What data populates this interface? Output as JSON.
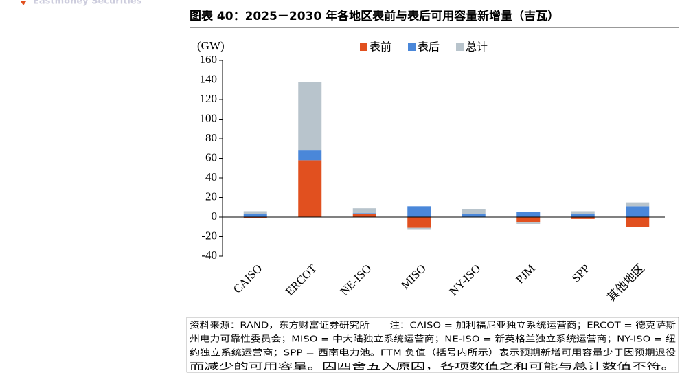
{
  "brand": "Eastmoney Securities",
  "chart_data": {
    "type": "stacked_bar",
    "title": "图表 40：2025－2030 年各地区表前与表后可用容量新增量（吉瓦）",
    "y_label": "(GW)",
    "categories": [
      "CAISO",
      "ERCOT",
      "NE-ISO",
      "MISO",
      "NY-ISO",
      "PJM",
      "SPP",
      "其他地区"
    ],
    "series": [
      {
        "name": "表前",
        "color": "#e1501f",
        "values": [
          -1,
          58,
          3,
          -11,
          0,
          -5,
          -2,
          -10
        ]
      },
      {
        "name": "表后",
        "color": "#4a87d9",
        "values": [
          3,
          10,
          1,
          11,
          3,
          5,
          3,
          11
        ]
      },
      {
        "name": "总计",
        "color": "#b8c4cc",
        "values": [
          3,
          70,
          5,
          -2,
          5,
          -2,
          3,
          4
        ]
      }
    ],
    "ylim": [
      -40,
      160
    ],
    "yticks": [
      -40,
      -20,
      0,
      20,
      40,
      60,
      80,
      100,
      120,
      140,
      160
    ],
    "legend": "top",
    "notes": [
      "资料来源：RAND，东方财富证券研究所　　注：CAISO = 加利福尼亚独立系统运营商；ERCOT = 德克萨斯",
      "州电力可靠性委员会；MISO = 中大陆独立系统运营商；NE-ISO = 新英格兰独立系统运营商；NY-ISO = 纽",
      "约独立系统运营商；SPP = 西南电力池。FTM 负值（括号内所示）表示预期新增可用容量少于因预期退役",
      "而减少的可用容量。因四舍五入原因，各项数值之和可能与总计数值不符。"
    ]
  }
}
